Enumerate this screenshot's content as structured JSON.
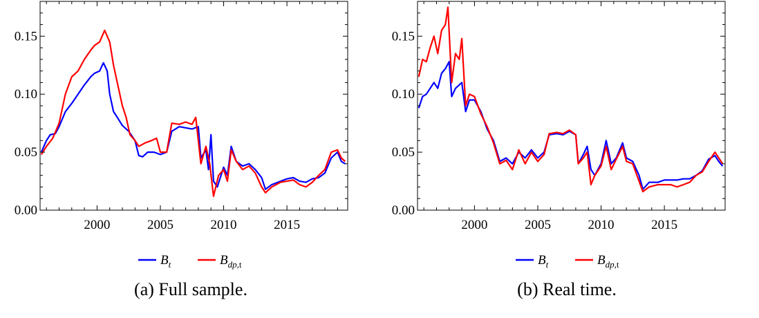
{
  "figure": {
    "panels": [
      {
        "caption": "(a) Full sample.",
        "legend": [
          {
            "base": "B",
            "sub": "t",
            "color": "#0000ff"
          },
          {
            "base": "B",
            "sub": "dp,",
            "sub_upright": "t",
            "color": "#ff0000"
          }
        ]
      },
      {
        "caption": "(b) Real time.",
        "legend": [
          {
            "base": "B",
            "sub": "t",
            "color": "#0000ff"
          },
          {
            "base": "B",
            "sub": "dp,",
            "sub_upright": "t",
            "color": "#ff0000"
          }
        ]
      }
    ]
  },
  "chart_data": [
    {
      "type": "line",
      "title": "",
      "xlim": [
        1995.5,
        2019.8
      ],
      "ylim": [
        0.0,
        0.18
      ],
      "xticks": [
        2000,
        2005,
        2010,
        2015
      ],
      "xtick_labels": [
        "2000",
        "2005",
        "2010",
        "2015"
      ],
      "yticks": [
        0.0,
        0.05,
        0.1,
        0.15
      ],
      "ytick_labels": [
        "0.00",
        "0.05",
        "0.10",
        "0.15"
      ],
      "grid": false,
      "legend_position": "bottom-center",
      "series": [
        {
          "name": "B_t",
          "color": "#0000ff",
          "points": [
            [
              1995.6,
              0.05
            ],
            [
              1996.0,
              0.06
            ],
            [
              1996.3,
              0.065
            ],
            [
              1996.7,
              0.066
            ],
            [
              1997.0,
              0.072
            ],
            [
              1997.5,
              0.085
            ],
            [
              1998.0,
              0.092
            ],
            [
              1998.5,
              0.1
            ],
            [
              1999.0,
              0.108
            ],
            [
              1999.5,
              0.115
            ],
            [
              1999.8,
              0.118
            ],
            [
              2000.2,
              0.12
            ],
            [
              2000.5,
              0.127
            ],
            [
              2000.8,
              0.12
            ],
            [
              2001.0,
              0.1
            ],
            [
              2001.3,
              0.085
            ],
            [
              2001.6,
              0.08
            ],
            [
              2002.0,
              0.073
            ],
            [
              2002.5,
              0.068
            ],
            [
              2003.0,
              0.06
            ],
            [
              2003.3,
              0.047
            ],
            [
              2003.6,
              0.046
            ],
            [
              2004.0,
              0.05
            ],
            [
              2004.5,
              0.05
            ],
            [
              2005.0,
              0.048
            ],
            [
              2005.5,
              0.05
            ],
            [
              2005.9,
              0.068
            ],
            [
              2006.5,
              0.072
            ],
            [
              2007.0,
              0.071
            ],
            [
              2007.5,
              0.07
            ],
            [
              2008.0,
              0.072
            ],
            [
              2008.2,
              0.045
            ],
            [
              2008.6,
              0.052
            ],
            [
              2008.8,
              0.035
            ],
            [
              2009.0,
              0.065
            ],
            [
              2009.2,
              0.025
            ],
            [
              2009.5,
              0.02
            ],
            [
              2010.0,
              0.037
            ],
            [
              2010.3,
              0.03
            ],
            [
              2010.6,
              0.055
            ],
            [
              2011.0,
              0.042
            ],
            [
              2011.5,
              0.038
            ],
            [
              2012.0,
              0.04
            ],
            [
              2012.5,
              0.035
            ],
            [
              2013.0,
              0.028
            ],
            [
              2013.3,
              0.018
            ],
            [
              2013.8,
              0.022
            ],
            [
              2014.5,
              0.025
            ],
            [
              2015.0,
              0.027
            ],
            [
              2015.5,
              0.028
            ],
            [
              2016.0,
              0.025
            ],
            [
              2016.5,
              0.024
            ],
            [
              2017.0,
              0.027
            ],
            [
              2017.5,
              0.028
            ],
            [
              2018.0,
              0.032
            ],
            [
              2018.5,
              0.045
            ],
            [
              2019.0,
              0.05
            ],
            [
              2019.3,
              0.042
            ],
            [
              2019.6,
              0.04
            ]
          ]
        },
        {
          "name": "B_dp,t",
          "color": "#ff0000",
          "points": [
            [
              1995.6,
              0.048
            ],
            [
              1996.0,
              0.055
            ],
            [
              1996.5,
              0.062
            ],
            [
              1997.0,
              0.075
            ],
            [
              1997.5,
              0.1
            ],
            [
              1998.0,
              0.115
            ],
            [
              1998.5,
              0.12
            ],
            [
              1999.0,
              0.13
            ],
            [
              1999.5,
              0.138
            ],
            [
              1999.8,
              0.142
            ],
            [
              2000.2,
              0.145
            ],
            [
              2000.6,
              0.155
            ],
            [
              2001.0,
              0.145
            ],
            [
              2001.3,
              0.125
            ],
            [
              2001.7,
              0.105
            ],
            [
              2002.0,
              0.09
            ],
            [
              2002.3,
              0.08
            ],
            [
              2002.6,
              0.065
            ],
            [
              2003.0,
              0.06
            ],
            [
              2003.3,
              0.055
            ],
            [
              2003.8,
              0.058
            ],
            [
              2004.3,
              0.06
            ],
            [
              2004.7,
              0.062
            ],
            [
              2005.0,
              0.05
            ],
            [
              2005.5,
              0.05
            ],
            [
              2005.9,
              0.075
            ],
            [
              2006.5,
              0.074
            ],
            [
              2007.0,
              0.076
            ],
            [
              2007.5,
              0.074
            ],
            [
              2007.8,
              0.08
            ],
            [
              2008.2,
              0.04
            ],
            [
              2008.6,
              0.055
            ],
            [
              2008.9,
              0.04
            ],
            [
              2009.2,
              0.012
            ],
            [
              2009.6,
              0.03
            ],
            [
              2010.0,
              0.035
            ],
            [
              2010.3,
              0.025
            ],
            [
              2010.6,
              0.052
            ],
            [
              2011.0,
              0.042
            ],
            [
              2011.5,
              0.035
            ],
            [
              2012.0,
              0.038
            ],
            [
              2012.5,
              0.032
            ],
            [
              2013.0,
              0.02
            ],
            [
              2013.3,
              0.015
            ],
            [
              2013.8,
              0.02
            ],
            [
              2014.5,
              0.024
            ],
            [
              2015.0,
              0.025
            ],
            [
              2015.5,
              0.026
            ],
            [
              2016.0,
              0.022
            ],
            [
              2016.5,
              0.02
            ],
            [
              2017.0,
              0.024
            ],
            [
              2017.5,
              0.03
            ],
            [
              2018.0,
              0.035
            ],
            [
              2018.5,
              0.05
            ],
            [
              2019.0,
              0.052
            ],
            [
              2019.3,
              0.045
            ],
            [
              2019.6,
              0.042
            ]
          ]
        }
      ]
    },
    {
      "type": "line",
      "title": "",
      "xlim": [
        1995.5,
        2019.8
      ],
      "ylim": [
        0.0,
        0.18
      ],
      "xticks": [
        2000,
        2005,
        2010,
        2015
      ],
      "xtick_labels": [
        "2000",
        "2005",
        "2010",
        "2015"
      ],
      "yticks": [
        0.0,
        0.05,
        0.1,
        0.15
      ],
      "ytick_labels": [
        "0.00",
        "0.05",
        "0.10",
        "0.15"
      ],
      "grid": false,
      "legend_position": "bottom-center",
      "series": [
        {
          "name": "B_t",
          "color": "#0000ff",
          "points": [
            [
              1995.6,
              0.088
            ],
            [
              1995.9,
              0.098
            ],
            [
              1996.2,
              0.1
            ],
            [
              1996.5,
              0.105
            ],
            [
              1996.8,
              0.11
            ],
            [
              1997.1,
              0.105
            ],
            [
              1997.4,
              0.118
            ],
            [
              1997.7,
              0.122
            ],
            [
              1998.0,
              0.128
            ],
            [
              1998.2,
              0.098
            ],
            [
              1998.5,
              0.105
            ],
            [
              1998.8,
              0.108
            ],
            [
              1999.0,
              0.11
            ],
            [
              1999.3,
              0.085
            ],
            [
              1999.6,
              0.095
            ],
            [
              2000.0,
              0.095
            ],
            [
              2000.5,
              0.085
            ],
            [
              2001.0,
              0.07
            ],
            [
              2001.5,
              0.06
            ],
            [
              2002.0,
              0.042
            ],
            [
              2002.5,
              0.045
            ],
            [
              2003.0,
              0.04
            ],
            [
              2003.5,
              0.05
            ],
            [
              2004.0,
              0.045
            ],
            [
              2004.5,
              0.052
            ],
            [
              2005.0,
              0.045
            ],
            [
              2005.5,
              0.05
            ],
            [
              2005.9,
              0.065
            ],
            [
              2006.5,
              0.066
            ],
            [
              2007.0,
              0.065
            ],
            [
              2007.5,
              0.068
            ],
            [
              2008.0,
              0.065
            ],
            [
              2008.2,
              0.04
            ],
            [
              2008.6,
              0.048
            ],
            [
              2008.9,
              0.055
            ],
            [
              2009.2,
              0.035
            ],
            [
              2009.5,
              0.03
            ],
            [
              2010.0,
              0.04
            ],
            [
              2010.4,
              0.06
            ],
            [
              2010.8,
              0.04
            ],
            [
              2011.2,
              0.045
            ],
            [
              2011.7,
              0.058
            ],
            [
              2012.0,
              0.045
            ],
            [
              2012.5,
              0.042
            ],
            [
              2013.0,
              0.03
            ],
            [
              2013.3,
              0.018
            ],
            [
              2013.8,
              0.024
            ],
            [
              2014.5,
              0.024
            ],
            [
              2015.0,
              0.026
            ],
            [
              2015.5,
              0.026
            ],
            [
              2016.0,
              0.026
            ],
            [
              2016.5,
              0.027
            ],
            [
              2017.0,
              0.027
            ],
            [
              2017.5,
              0.03
            ],
            [
              2018.0,
              0.034
            ],
            [
              2018.5,
              0.044
            ],
            [
              2019.0,
              0.047
            ],
            [
              2019.3,
              0.042
            ],
            [
              2019.6,
              0.038
            ]
          ]
        },
        {
          "name": "B_dp,t",
          "color": "#ff0000",
          "points": [
            [
              1995.6,
              0.115
            ],
            [
              1995.9,
              0.13
            ],
            [
              1996.2,
              0.128
            ],
            [
              1996.5,
              0.14
            ],
            [
              1996.8,
              0.15
            ],
            [
              1997.1,
              0.135
            ],
            [
              1997.4,
              0.155
            ],
            [
              1997.7,
              0.16
            ],
            [
              1997.9,
              0.175
            ],
            [
              1998.2,
              0.11
            ],
            [
              1998.5,
              0.135
            ],
            [
              1998.8,
              0.13
            ],
            [
              1999.0,
              0.148
            ],
            [
              1999.3,
              0.09
            ],
            [
              1999.6,
              0.1
            ],
            [
              2000.0,
              0.098
            ],
            [
              2000.5,
              0.083
            ],
            [
              2001.0,
              0.072
            ],
            [
              2001.5,
              0.058
            ],
            [
              2002.0,
              0.04
            ],
            [
              2002.5,
              0.043
            ],
            [
              2003.0,
              0.035
            ],
            [
              2003.5,
              0.052
            ],
            [
              2004.0,
              0.04
            ],
            [
              2004.5,
              0.05
            ],
            [
              2005.0,
              0.042
            ],
            [
              2005.5,
              0.048
            ],
            [
              2005.9,
              0.066
            ],
            [
              2006.5,
              0.067
            ],
            [
              2007.0,
              0.066
            ],
            [
              2007.5,
              0.069
            ],
            [
              2008.0,
              0.065
            ],
            [
              2008.2,
              0.04
            ],
            [
              2008.6,
              0.045
            ],
            [
              2008.9,
              0.05
            ],
            [
              2009.2,
              0.022
            ],
            [
              2009.5,
              0.03
            ],
            [
              2010.0,
              0.038
            ],
            [
              2010.4,
              0.055
            ],
            [
              2010.8,
              0.035
            ],
            [
              2011.2,
              0.044
            ],
            [
              2011.7,
              0.055
            ],
            [
              2012.0,
              0.042
            ],
            [
              2012.5,
              0.04
            ],
            [
              2013.0,
              0.025
            ],
            [
              2013.3,
              0.016
            ],
            [
              2013.8,
              0.02
            ],
            [
              2014.5,
              0.022
            ],
            [
              2015.0,
              0.022
            ],
            [
              2015.5,
              0.022
            ],
            [
              2016.0,
              0.02
            ],
            [
              2016.5,
              0.022
            ],
            [
              2017.0,
              0.024
            ],
            [
              2017.5,
              0.03
            ],
            [
              2018.0,
              0.033
            ],
            [
              2018.5,
              0.042
            ],
            [
              2019.0,
              0.05
            ],
            [
              2019.3,
              0.045
            ],
            [
              2019.6,
              0.04
            ]
          ]
        }
      ]
    }
  ]
}
